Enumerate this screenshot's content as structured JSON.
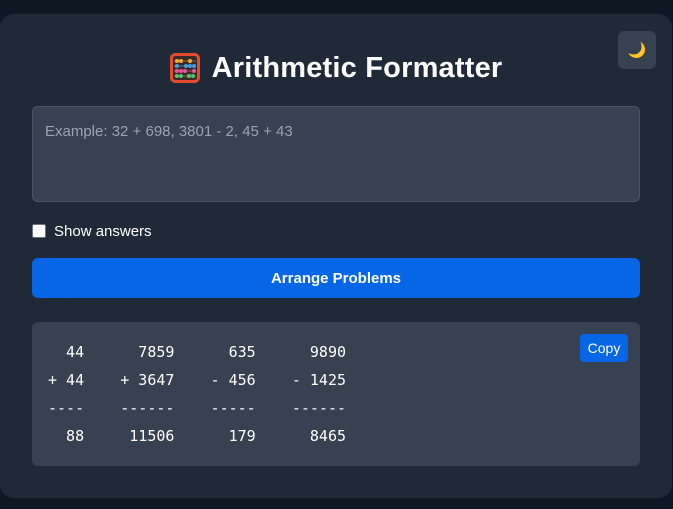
{
  "app": {
    "title": "Arithmetic Formatter",
    "icon": "abacus-icon",
    "theme_toggle_icon": "moon-icon"
  },
  "input": {
    "placeholder": "Example: 32 + 698, 3801 - 2, 45 + 43",
    "value": ""
  },
  "options": {
    "show_answers_label": "Show answers",
    "show_answers_checked": false
  },
  "actions": {
    "arrange_label": "Arrange Problems",
    "copy_label": "Copy"
  },
  "output": {
    "lines": [
      "  44      7859      635      9890",
      "+ 44    + 3647    - 456    - 1425",
      "----    ------    -----    ------",
      "  88     11506      179      8465"
    ]
  },
  "colors": {
    "page_background": "#0f1723",
    "card_background": "#1f2937",
    "panel_background": "#374151",
    "accent": "#0766e6",
    "text": "#ffffff",
    "placeholder": "#9ca3af"
  }
}
